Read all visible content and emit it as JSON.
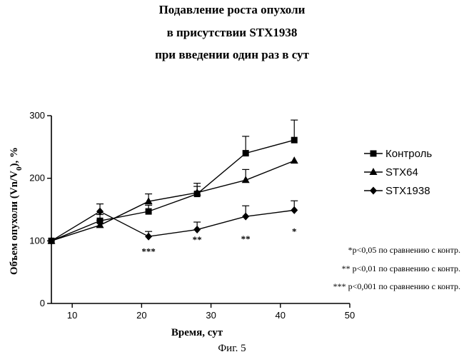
{
  "chart_data": {
    "type": "line",
    "title": [
      "Подавление роста опухоли",
      "в присутствии STX1938",
      "при введении один раз в сут"
    ],
    "xlabel": "Время, сут",
    "ylabel": "Объем опухоли (Vn/V",
    "ylabel_sub": "0",
    "ylabel_tail": "), %",
    "xlim": [
      7,
      50
    ],
    "ylim": [
      0,
      300
    ],
    "xticks": [
      10,
      20,
      30,
      40,
      50
    ],
    "yticks": [
      0,
      100,
      200,
      300
    ],
    "legend_position": "right",
    "series": [
      {
        "name": "Контроль",
        "marker": "square",
        "x": [
          7,
          14,
          21,
          28,
          35,
          42
        ],
        "y": [
          100,
          132,
          147,
          175,
          240,
          261
        ],
        "err": [
          0,
          10,
          10,
          12,
          27,
          32
        ]
      },
      {
        "name": "STX64",
        "marker": "triangle",
        "x": [
          7,
          14,
          21,
          28,
          35,
          42
        ],
        "y": [
          100,
          125,
          163,
          177,
          197,
          228
        ],
        "err": [
          0,
          8,
          12,
          15,
          17,
          0
        ]
      },
      {
        "name": "STX1938",
        "marker": "diamond",
        "x": [
          7,
          14,
          21,
          28,
          35,
          42
        ],
        "y": [
          100,
          147,
          107,
          118,
          139,
          149
        ],
        "err": [
          0,
          12,
          8,
          12,
          17,
          15
        ]
      }
    ],
    "significance_marks": [
      {
        "x": 21,
        "y": 78,
        "text": "***"
      },
      {
        "x": 28,
        "y": 97,
        "text": "**"
      },
      {
        "x": 35,
        "y": 98,
        "text": "**"
      },
      {
        "x": 42,
        "y": 110,
        "text": "*"
      }
    ],
    "notes": [
      "*p<0,05 по сравнению с контр.",
      "** p<0,01 по сравнению с контр.",
      "*** p<0,001 по сравнению с контр."
    ],
    "caption": "Фиг. 5"
  }
}
